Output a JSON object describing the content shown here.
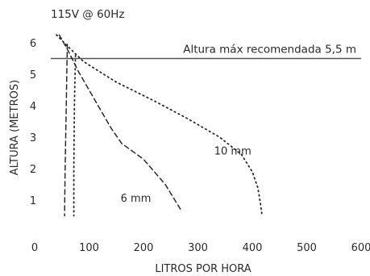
{
  "chart_data": {
    "type": "line",
    "subtitle": "115V @ 60Hz",
    "xlabel": "LITROS POR HORA",
    "ylabel": "ALTURA (METROS)",
    "xlim": [
      0,
      600
    ],
    "ylim": [
      0,
      6
    ],
    "x_ticks": [
      "0",
      "100",
      "200",
      "300",
      "400",
      "500",
      "600"
    ],
    "y_ticks": [
      "1",
      "2",
      "3",
      "4",
      "5",
      "6"
    ],
    "reference_line": {
      "y": 5.5,
      "label": "Altura máx recomendada 5,5 m"
    },
    "series": [
      {
        "name": "10 mm",
        "line_style": "dotted",
        "points": [
          [
            40,
            6.25
          ],
          [
            60,
            5.9
          ],
          [
            90,
            5.4
          ],
          [
            150,
            4.75
          ],
          [
            220,
            4.15
          ],
          [
            280,
            3.6
          ],
          [
            340,
            3.0
          ],
          [
            380,
            2.45
          ],
          [
            400,
            1.9
          ],
          [
            410,
            1.4
          ],
          [
            415,
            0.9
          ],
          [
            418,
            0.5
          ]
        ]
      },
      {
        "name": "6 mm",
        "line_style": "dashed",
        "points": [
          [
            45,
            6.25
          ],
          [
            60,
            5.8
          ],
          [
            80,
            5.1
          ],
          [
            100,
            4.5
          ],
          [
            120,
            3.9
          ],
          [
            140,
            3.3
          ],
          [
            160,
            2.8
          ],
          [
            200,
            2.3
          ],
          [
            240,
            1.5
          ],
          [
            270,
            0.65
          ]
        ]
      },
      {
        "name": "",
        "line_style": "dashed",
        "points": [
          [
            60,
            5.95
          ],
          [
            58,
            4.0
          ],
          [
            56,
            2.0
          ],
          [
            55,
            0.5
          ]
        ]
      },
      {
        "name": "",
        "line_style": "dotted",
        "points": [
          [
            75,
            5.6
          ],
          [
            73,
            4.0
          ],
          [
            72,
            2.0
          ],
          [
            72,
            0.5
          ]
        ]
      }
    ],
    "series_label_positions": {
      "10 mm": [
        330,
        2.45
      ],
      "6 mm": [
        158,
        0.95
      ]
    },
    "grid": false,
    "legend": "none",
    "colors": {
      "line": "#2a2a2a",
      "reference": "#555555",
      "text": "#2a2a2a"
    }
  }
}
